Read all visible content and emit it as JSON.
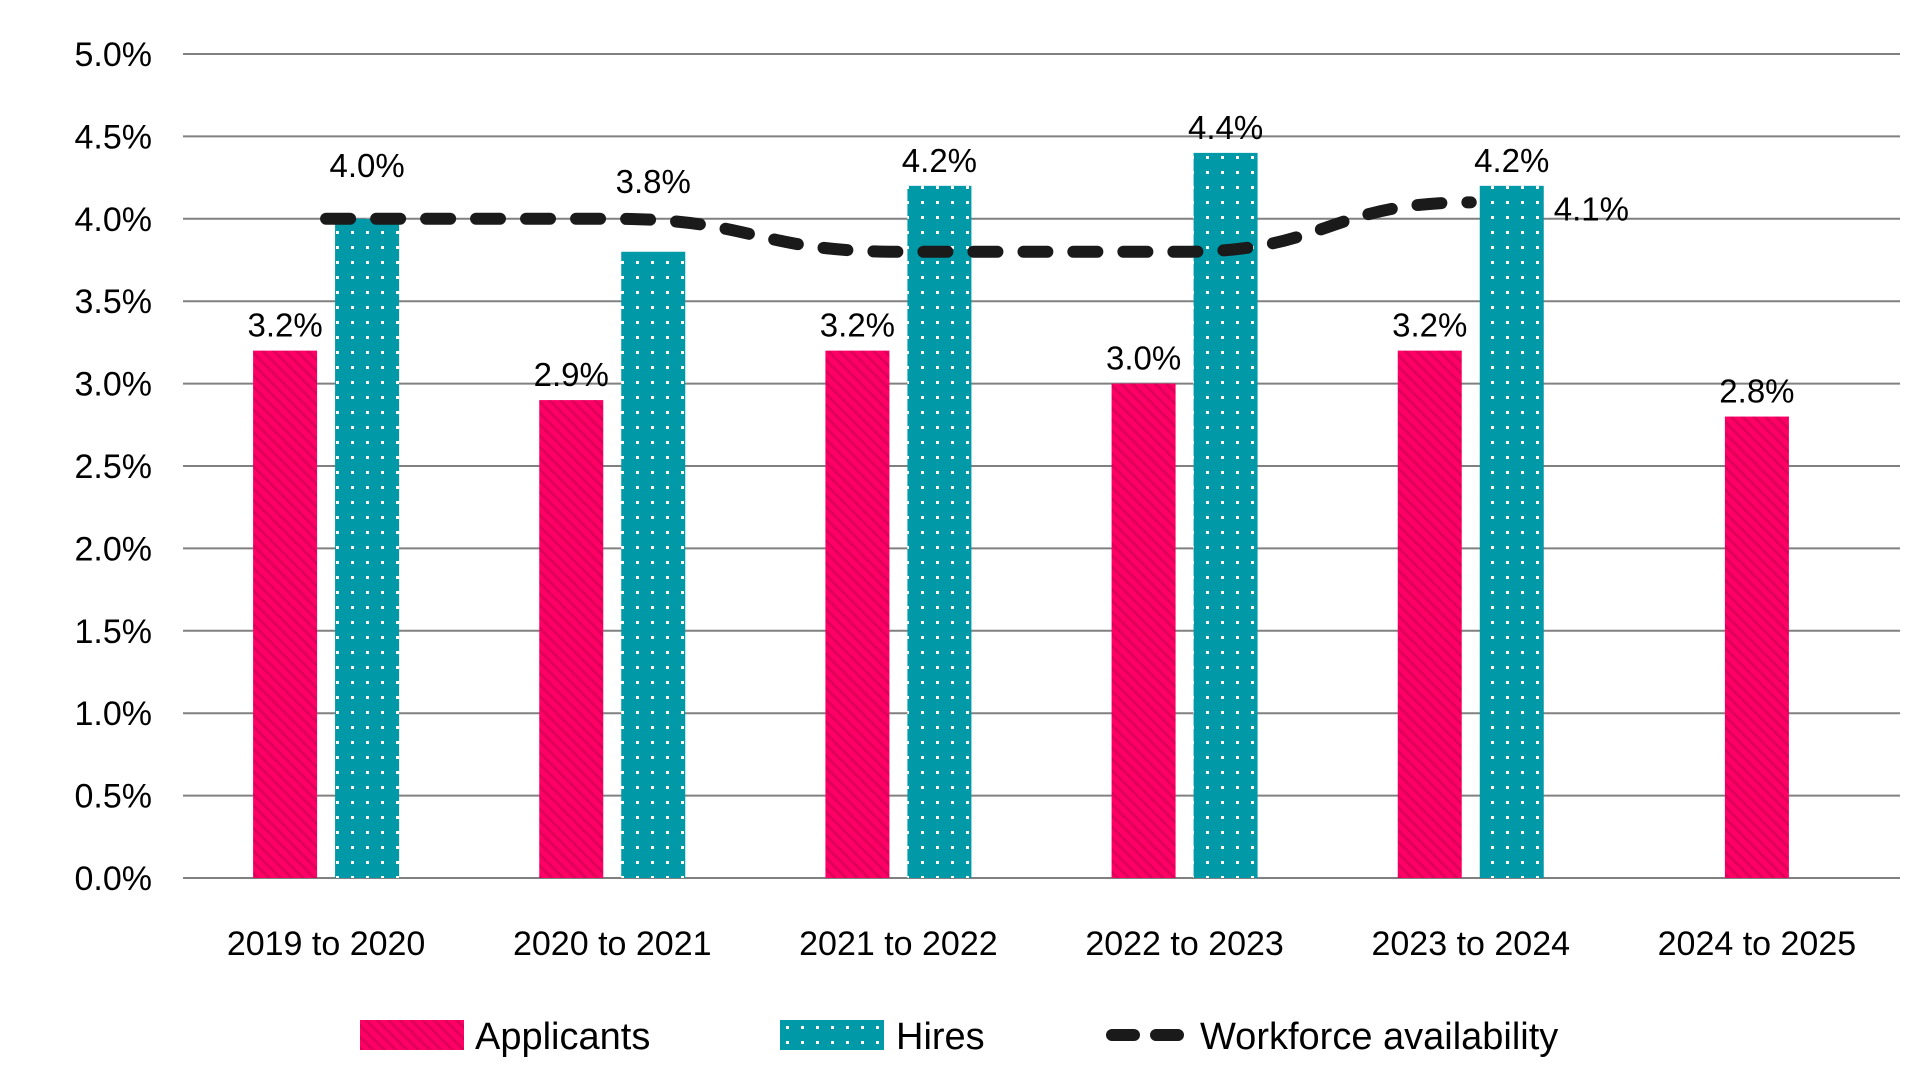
{
  "chart_data": {
    "type": "bar",
    "title": "",
    "xlabel": "",
    "ylabel": "",
    "ylim": [
      0,
      5.0
    ],
    "y_tick_step": 0.5,
    "y_tick_labels": [
      "0.0%",
      "0.5%",
      "1.0%",
      "1.5%",
      "2.0%",
      "2.5%",
      "3.0%",
      "3.5%",
      "4.0%",
      "4.5%",
      "5.0%"
    ],
    "grid": true,
    "legend_position": "bottom",
    "categories": [
      "2019 to 2020",
      "2020 to 2021",
      "2021 to 2022",
      "2022 to 2023",
      "2023 to 2024",
      "2024 to 2025"
    ],
    "series": [
      {
        "name": "Applicants",
        "type": "bar",
        "color": "#FF0066",
        "pattern": "diagonal-hatch",
        "values": [
          3.2,
          2.9,
          3.2,
          3.0,
          3.2,
          2.8
        ],
        "labels": [
          "3.2%",
          "2.9%",
          "3.2%",
          "3.0%",
          "3.2%",
          "2.8%"
        ]
      },
      {
        "name": "Hires",
        "type": "bar",
        "color": "#0099A8",
        "pattern": "dots",
        "values": [
          4.0,
          3.8,
          4.2,
          4.4,
          4.2,
          null
        ],
        "labels": [
          "4.0%",
          "3.8%",
          "4.2%",
          "4.4%",
          "4.2%",
          null
        ]
      },
      {
        "name": "Workforce availability",
        "type": "line",
        "style": "dashed",
        "color": "#1A1A1A",
        "values": [
          4.0,
          4.0,
          3.8,
          3.8,
          4.1,
          null
        ],
        "end_label": "4.1%"
      }
    ]
  }
}
